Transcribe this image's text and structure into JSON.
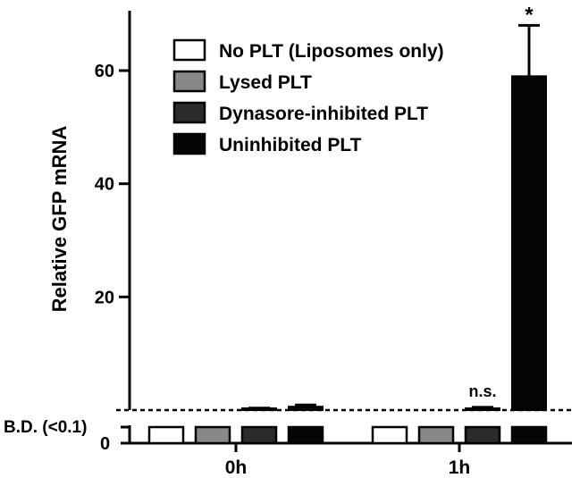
{
  "chart_data": {
    "type": "bar",
    "title": "",
    "xlabel": "",
    "ylabel": "Relative GFP mRNA",
    "ylim": [
      0,
      70
    ],
    "yticks": [
      20,
      40,
      60
    ],
    "categories": [
      "0h",
      "1h"
    ],
    "below_detection_label": "B.D. (<0.1)",
    "zero_tick_label": "0",
    "legend_position": "top-center",
    "series": [
      {
        "name": "No PLT (Liposomes only)",
        "color": "#ffffff",
        "values": [
          0,
          0
        ],
        "error": [
          0,
          0
        ],
        "below_detection": [
          true,
          true
        ]
      },
      {
        "name": "Lysed PLT",
        "color": "#888888",
        "values": [
          0,
          0
        ],
        "error": [
          0,
          0
        ],
        "below_detection": [
          true,
          true
        ]
      },
      {
        "name": "Dynasore-inhibited PLT",
        "color": "#2b2b2b",
        "values": [
          0.2,
          0.3
        ],
        "error": [
          0.15,
          0.2
        ],
        "below_detection": [
          false,
          false
        ]
      },
      {
        "name": "Uninhibited PLT",
        "color": "#050505",
        "values": [
          0.6,
          59
        ],
        "error": [
          0.3,
          9
        ],
        "below_detection": [
          false,
          false
        ]
      }
    ],
    "annotations": [
      {
        "category": "1h",
        "series": "Dynasore-inhibited PLT",
        "text": "n.s."
      },
      {
        "category": "1h",
        "series": "Uninhibited PLT",
        "text": "*"
      }
    ]
  }
}
